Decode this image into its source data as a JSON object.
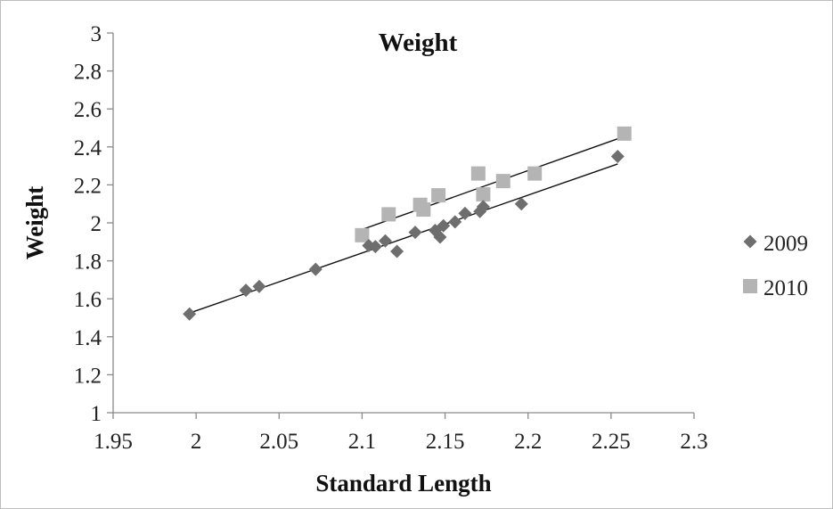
{
  "chart_data": {
    "type": "scatter",
    "title": "Weight",
    "xlabel": "Standard Length",
    "ylabel": "Weight",
    "xlim": [
      1.95,
      2.3
    ],
    "ylim": [
      1,
      3
    ],
    "x_ticks": [
      "1.95",
      "2",
      "2.05",
      "2.1",
      "2.15",
      "2.2",
      "2.25",
      "2.3"
    ],
    "y_ticks": [
      "1",
      "1.2",
      "1.4",
      "1.6",
      "1.8",
      "2",
      "2.2",
      "2.4",
      "2.6",
      "2.8",
      "3"
    ],
    "grid": false,
    "legend_position": "right",
    "series": [
      {
        "name": "2009",
        "marker": "diamond",
        "color": "#6e6e6e",
        "points": [
          [
            1.996,
            1.52
          ],
          [
            2.03,
            1.645
          ],
          [
            2.038,
            1.665
          ],
          [
            2.072,
            1.755
          ],
          [
            2.104,
            1.88
          ],
          [
            2.108,
            1.875
          ],
          [
            2.114,
            1.905
          ],
          [
            2.121,
            1.85
          ],
          [
            2.132,
            1.95
          ],
          [
            2.144,
            1.96
          ],
          [
            2.147,
            1.925
          ],
          [
            2.149,
            1.985
          ],
          [
            2.156,
            2.005
          ],
          [
            2.162,
            2.05
          ],
          [
            2.171,
            2.06
          ],
          [
            2.173,
            2.085
          ],
          [
            2.196,
            2.1
          ],
          [
            2.254,
            2.35
          ]
        ],
        "trendline": [
          [
            1.996,
            1.525
          ],
          [
            2.254,
            2.31
          ]
        ]
      },
      {
        "name": "2010",
        "marker": "square",
        "color": "#b4b4b4",
        "points": [
          [
            2.1,
            1.935
          ],
          [
            2.116,
            2.045
          ],
          [
            2.135,
            2.095
          ],
          [
            2.137,
            2.07
          ],
          [
            2.146,
            2.145
          ],
          [
            2.17,
            2.26
          ],
          [
            2.173,
            2.15
          ],
          [
            2.185,
            2.22
          ],
          [
            2.204,
            2.26
          ],
          [
            2.258,
            2.47
          ]
        ],
        "trendline": [
          [
            2.1,
            1.965
          ],
          [
            2.258,
            2.455
          ]
        ]
      }
    ]
  }
}
